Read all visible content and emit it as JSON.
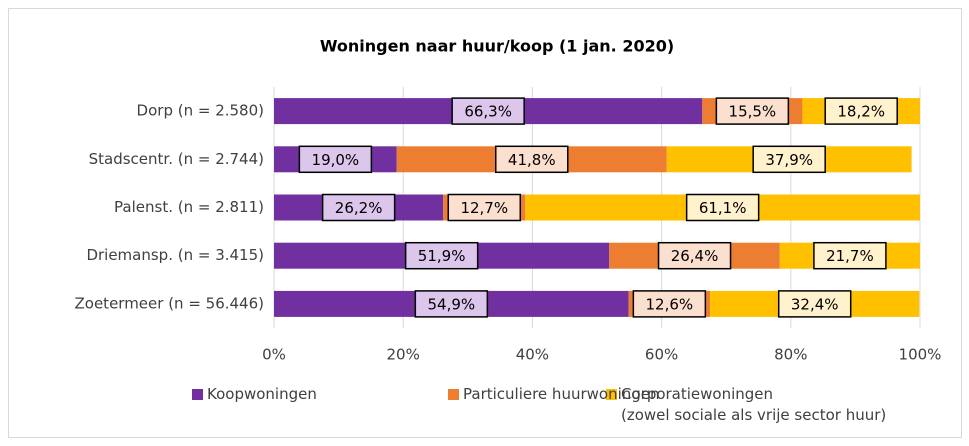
{
  "chart_data": {
    "type": "stacked-bar-horizontal",
    "title": "Woningen naar huur/koop (1 jan. 2020)",
    "categories": [
      "Dorp (n = 2.580)",
      "Stadscentr. (n = 2.744)",
      "Palenst. (n = 2.811)",
      "Driemansp. (n = 3.415)",
      "Zoetermeer (n = 56.446)"
    ],
    "series": [
      {
        "name": "Koopwoningen",
        "color": "#7030a0",
        "label_fill": "#dcc6ec",
        "values": [
          66.3,
          19.0,
          26.2,
          51.9,
          54.9
        ],
        "value_labels": [
          "66,3%",
          "19,0%",
          "26,2%",
          "51,9%",
          "54,9%"
        ]
      },
      {
        "name": "Particuliere huurwoningen",
        "color": "#ed7d31",
        "label_fill": "#fbe0cf",
        "values": [
          15.5,
          41.8,
          12.7,
          26.4,
          12.6
        ],
        "value_labels": [
          "15,5%",
          "41,8%",
          "12,7%",
          "26,4%",
          "12,6%"
        ]
      },
      {
        "name": "Corporatiewoningen\n(zowel sociale als vrije sector huur)",
        "color": "#ffc000",
        "label_fill": "#fff2cc",
        "values": [
          18.2,
          37.9,
          61.1,
          21.7,
          32.4
        ],
        "value_labels": [
          "18,2%",
          "37,9%",
          "61,1%",
          "21,7%",
          "32,4%"
        ]
      }
    ],
    "xlim": [
      0,
      100
    ],
    "xticks": [
      {
        "value": 0,
        "label": "0%"
      },
      {
        "value": 20,
        "label": "20%"
      },
      {
        "value": 40,
        "label": "40%"
      },
      {
        "value": 60,
        "label": "60%"
      },
      {
        "value": 80,
        "label": "80%"
      },
      {
        "value": 100,
        "label": "100%"
      }
    ],
    "grid": true
  }
}
